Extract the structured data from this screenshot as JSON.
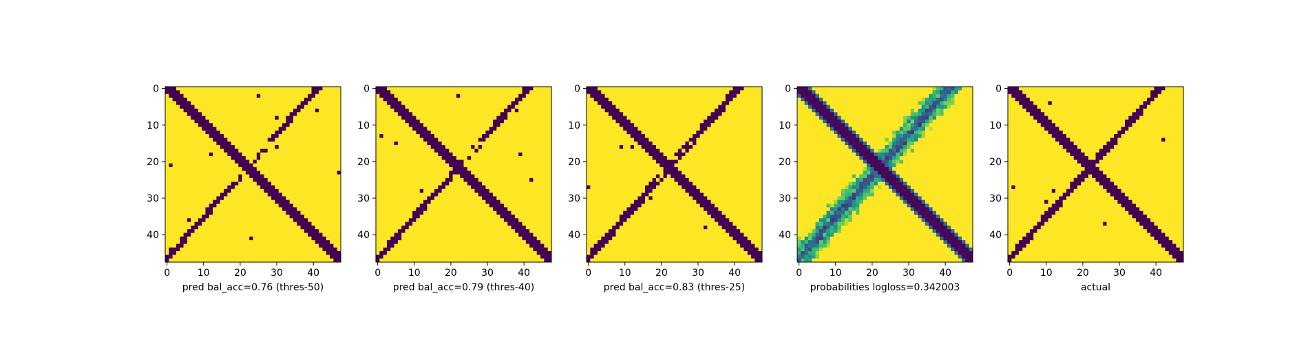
{
  "colors": {
    "background": "#440154",
    "foreground": "#fde725",
    "colormap": "viridis"
  },
  "chart_data": [
    {
      "type": "heatmap",
      "title": "",
      "xlabel": "pred bal_acc=0.76 (thres-50)",
      "ylabel": "",
      "xlim": [
        -0.5,
        47.5
      ],
      "ylim": [
        47.5,
        -0.5
      ],
      "x_ticks": [
        "0",
        "10",
        "20",
        "30",
        "40"
      ],
      "y_ticks": [
        "0",
        "10",
        "20",
        "30",
        "40"
      ],
      "grid": false,
      "rows": 48,
      "cols": 48,
      "values_description": "binary matrix (0 = dark purple, 1 = yellow) with an X pattern: main diagonal band and a broken anti-diagonal band"
    },
    {
      "type": "heatmap",
      "title": "",
      "xlabel": "pred bal_acc=0.79 (thres-40)",
      "ylabel": "",
      "xlim": [
        -0.5,
        47.5
      ],
      "ylim": [
        47.5,
        -0.5
      ],
      "x_ticks": [
        "0",
        "10",
        "20",
        "30",
        "40"
      ],
      "y_ticks": [
        "0",
        "10",
        "20",
        "30",
        "40"
      ],
      "grid": false,
      "rows": 48,
      "cols": 48,
      "values_description": "binary matrix with X pattern"
    },
    {
      "type": "heatmap",
      "title": "",
      "xlabel": "pred bal_acc=0.83 (thres-25)",
      "ylabel": "",
      "xlim": [
        -0.5,
        47.5
      ],
      "ylim": [
        47.5,
        -0.5
      ],
      "x_ticks": [
        "0",
        "10",
        "20",
        "30",
        "40"
      ],
      "y_ticks": [
        "0",
        "10",
        "20",
        "30",
        "40"
      ],
      "grid": false,
      "rows": 48,
      "cols": 48,
      "values_description": "binary matrix with X pattern"
    },
    {
      "type": "heatmap",
      "title": "",
      "xlabel": "probabilities logloss=0.342003",
      "ylabel": "",
      "xlim": [
        -0.5,
        47.5
      ],
      "ylim": [
        47.5,
        -0.5
      ],
      "x_ticks": [
        "0",
        "10",
        "20",
        "30",
        "40"
      ],
      "y_ticks": [
        "0",
        "10",
        "20",
        "30",
        "40"
      ],
      "grid": false,
      "rows": 48,
      "cols": 48,
      "values_description": "continuous probability matrix (viridis) with X pattern; sharp main diagonal, fuzzy anti-diagonal"
    },
    {
      "type": "heatmap",
      "title": "",
      "xlabel": "actual",
      "ylabel": "",
      "xlim": [
        -0.5,
        47.5
      ],
      "ylim": [
        47.5,
        -0.5
      ],
      "x_ticks": [
        "0",
        "10",
        "20",
        "30",
        "40"
      ],
      "y_ticks": [
        "0",
        "10",
        "20",
        "30",
        "40"
      ],
      "grid": false,
      "rows": 48,
      "cols": 48,
      "values_description": "binary ground-truth matrix with X pattern"
    }
  ]
}
